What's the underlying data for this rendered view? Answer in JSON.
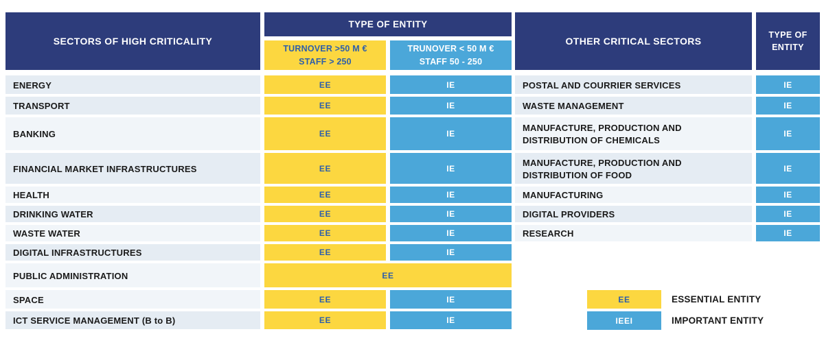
{
  "colors": {
    "navy": "#2d3c7b",
    "yellow": "#fcd740",
    "blue": "#4ba7d9",
    "blue_text_on_yellow": "#2e5fa9",
    "row_shade_dark": "#e5ecf3",
    "row_shade_light": "#f1f5f9",
    "sector_text": "#1a1a1a"
  },
  "left_table": {
    "header": "SECTORS OF HIGH CRITICALITY",
    "entity_header": "TYPE OF ENTITY",
    "essential_col": {
      "line1": "TURNOVER >50 M €",
      "line2": "STAFF > 250"
    },
    "important_col": {
      "line1": "TRUNOVER < 50 M €",
      "line2": "STAFF 50 - 250"
    },
    "rows": [
      {
        "sector": "ENERGY",
        "cells": [
          {
            "label": "EE",
            "kind": "ee"
          },
          {
            "label": "IE",
            "kind": "ie"
          }
        ]
      },
      {
        "sector": "TRANSPORT",
        "cells": [
          {
            "label": "EE",
            "kind": "ee"
          },
          {
            "label": "IE",
            "kind": "ie"
          }
        ]
      },
      {
        "sector": "BANKING",
        "cells": [
          {
            "label": "EE",
            "kind": "ee"
          },
          {
            "label": "IE",
            "kind": "ie"
          }
        ]
      },
      {
        "sector": "FINANCIAL MARKET INFRASTRUCTURES",
        "cells": [
          {
            "label": "EE",
            "kind": "ee"
          },
          {
            "label": "IE",
            "kind": "ie"
          }
        ]
      },
      {
        "sector": "HEALTH",
        "cells": [
          {
            "label": "EE",
            "kind": "ee"
          },
          {
            "label": "IE",
            "kind": "ie"
          }
        ]
      },
      {
        "sector": "DRINKING WATER",
        "cells": [
          {
            "label": "EE",
            "kind": "ee"
          },
          {
            "label": "IE",
            "kind": "ie"
          }
        ]
      },
      {
        "sector": "WASTE WATER",
        "cells": [
          {
            "label": "EE",
            "kind": "ee"
          },
          {
            "label": "IE",
            "kind": "ie"
          }
        ]
      },
      {
        "sector": "DIGITAL INFRASTRUCTURES",
        "cells": [
          {
            "label": "EE",
            "kind": "ee"
          },
          {
            "label": "IE",
            "kind": "ie"
          }
        ]
      },
      {
        "sector": "PUBLIC ADMINISTRATION",
        "cells": [
          {
            "label": "EE",
            "kind": "ee",
            "span": 2
          }
        ]
      },
      {
        "sector": "SPACE",
        "cells": [
          {
            "label": "EE",
            "kind": "ee"
          },
          {
            "label": "IE",
            "kind": "ie"
          }
        ]
      },
      {
        "sector": "ICT SERVICE MANAGEMENT (B to B)",
        "cells": [
          {
            "label": "EE",
            "kind": "ee"
          },
          {
            "label": "IE",
            "kind": "ie"
          }
        ]
      }
    ]
  },
  "right_table": {
    "header": "OTHER CRITICAL SECTORS",
    "entity_header": {
      "line1": "TYPE OF",
      "line2": "ENTITY"
    },
    "rows": [
      {
        "sector": "POSTAL AND COURRIER SERVICES",
        "label": "IE",
        "kind": "ie"
      },
      {
        "sector": "WASTE MANAGEMENT",
        "label": "IE",
        "kind": "ie"
      },
      {
        "sector": "MANUFACTURE, PRODUCTION AND DISTRIBUTION OF CHEMICALS",
        "label": "IE",
        "kind": "ie"
      },
      {
        "sector": "MANUFACTURE, PRODUCTION AND DISTRIBUTION OF FOOD",
        "label": "IE",
        "kind": "ie"
      },
      {
        "sector": "MANUFACTURING",
        "label": "IE",
        "kind": "ie"
      },
      {
        "sector": "DIGITAL PROVIDERS",
        "label": "IE",
        "kind": "ie"
      },
      {
        "sector": "RESEARCH",
        "label": "IE",
        "kind": "ie"
      }
    ]
  },
  "legend": {
    "items": [
      {
        "box": "EE",
        "kind": "ee",
        "label": "ESSENTIAL ENTITY"
      },
      {
        "box": "IEEI",
        "kind": "ie",
        "label": "IMPORTANT ENTITY"
      }
    ]
  }
}
